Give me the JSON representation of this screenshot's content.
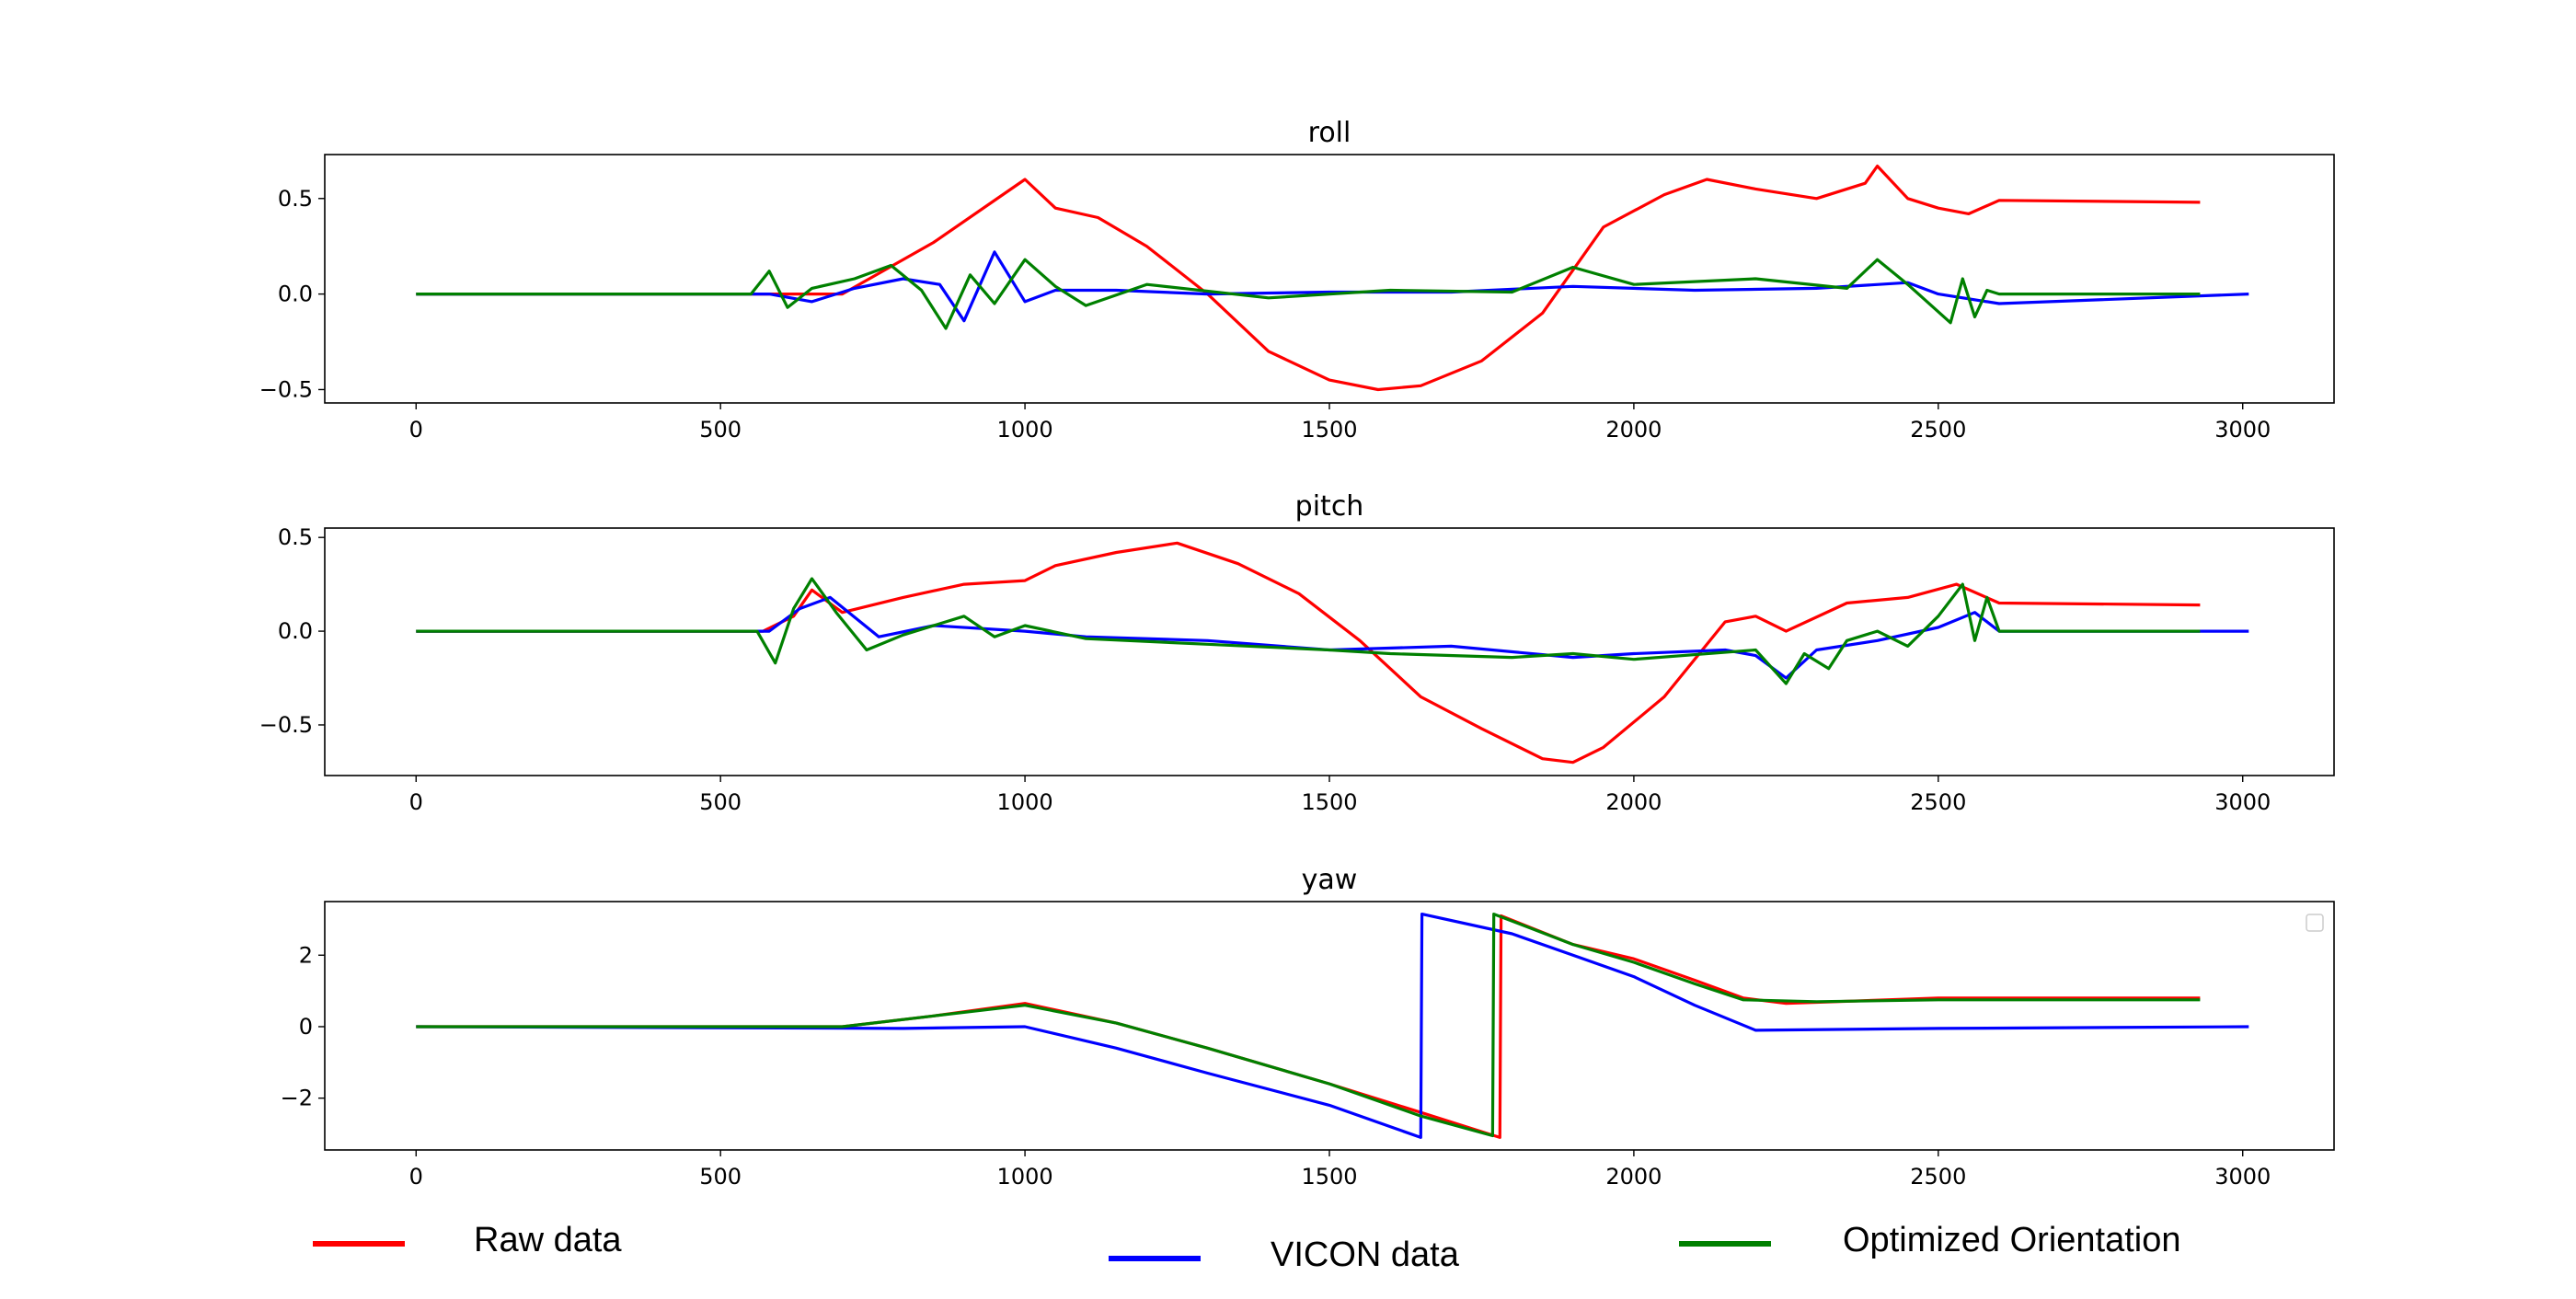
{
  "chart_data": [
    {
      "type": "line",
      "title": "roll",
      "xlabel": "",
      "ylabel": "",
      "xlim": [
        -150,
        3150
      ],
      "ylim": [
        -0.57,
        0.73
      ],
      "xticks": [
        0,
        500,
        1000,
        1500,
        2000,
        2500,
        3000
      ],
      "yticks": [
        -0.5,
        0.0,
        0.5
      ],
      "ytick_labels": [
        "−0.5",
        "0.0",
        "0.5"
      ],
      "grid": false,
      "series": [
        {
          "color": "#ff0000",
          "x": [
            0,
            700,
            850,
            1000,
            1050,
            1120,
            1200,
            1300,
            1400,
            1500,
            1580,
            1650,
            1750,
            1850,
            1950,
            2050,
            2120,
            2200,
            2300,
            2380,
            2400,
            2450,
            2500,
            2550,
            2600,
            2930
          ],
          "y": [
            0.0,
            0.0,
            0.27,
            0.6,
            0.45,
            0.4,
            0.25,
            0.0,
            -0.3,
            -0.45,
            -0.5,
            -0.48,
            -0.35,
            -0.1,
            0.35,
            0.52,
            0.6,
            0.55,
            0.5,
            0.58,
            0.67,
            0.5,
            0.45,
            0.42,
            0.49,
            0.48
          ]
        },
        {
          "color": "#0000ff",
          "x": [
            0,
            580,
            650,
            720,
            800,
            860,
            900,
            950,
            1000,
            1050,
            1150,
            1300,
            1500,
            1700,
            1900,
            2100,
            2300,
            2450,
            2500,
            2600,
            3010
          ],
          "y": [
            0.0,
            0.0,
            -0.04,
            0.03,
            0.08,
            0.05,
            -0.14,
            0.22,
            -0.04,
            0.02,
            0.02,
            0.0,
            0.01,
            0.01,
            0.04,
            0.02,
            0.03,
            0.06,
            0.0,
            -0.05,
            0.0
          ]
        },
        {
          "color": "#008000",
          "x": [
            0,
            550,
            580,
            610,
            650,
            720,
            780,
            830,
            870,
            910,
            950,
            1000,
            1050,
            1100,
            1200,
            1400,
            1600,
            1800,
            1900,
            2000,
            2200,
            2350,
            2400,
            2450,
            2520,
            2540,
            2560,
            2580,
            2600,
            2930
          ],
          "y": [
            0.0,
            0.0,
            0.12,
            -0.07,
            0.03,
            0.08,
            0.15,
            0.02,
            -0.18,
            0.1,
            -0.05,
            0.18,
            0.04,
            -0.06,
            0.05,
            -0.02,
            0.02,
            0.01,
            0.14,
            0.05,
            0.08,
            0.03,
            0.18,
            0.05,
            -0.15,
            0.08,
            -0.12,
            0.02,
            0.0,
            0.0
          ]
        }
      ]
    },
    {
      "type": "line",
      "title": "pitch",
      "xlabel": "",
      "ylabel": "",
      "xlim": [
        -150,
        3150
      ],
      "ylim": [
        -0.77,
        0.55
      ],
      "xticks": [
        0,
        500,
        1000,
        1500,
        2000,
        2500,
        3000
      ],
      "yticks": [
        -0.5,
        0.0,
        0.5
      ],
      "ytick_labels": [
        "−0.5",
        "0.0",
        "0.5"
      ],
      "grid": false,
      "series": [
        {
          "color": "#ff0000",
          "x": [
            0,
            570,
            620,
            650,
            700,
            800,
            900,
            1000,
            1050,
            1150,
            1250,
            1350,
            1450,
            1550,
            1650,
            1750,
            1850,
            1900,
            1950,
            2050,
            2150,
            2200,
            2250,
            2350,
            2450,
            2530,
            2600,
            2930
          ],
          "y": [
            0.0,
            0.0,
            0.08,
            0.22,
            0.1,
            0.18,
            0.25,
            0.27,
            0.35,
            0.42,
            0.47,
            0.36,
            0.2,
            -0.05,
            -0.35,
            -0.52,
            -0.68,
            -0.7,
            -0.62,
            -0.35,
            0.05,
            0.08,
            0.0,
            0.15,
            0.18,
            0.25,
            0.15,
            0.14
          ]
        },
        {
          "color": "#0000ff",
          "x": [
            0,
            580,
            630,
            680,
            760,
            850,
            1000,
            1100,
            1300,
            1500,
            1700,
            1900,
            2000,
            2150,
            2200,
            2250,
            2300,
            2400,
            2500,
            2560,
            2600,
            3010
          ],
          "y": [
            0.0,
            0.0,
            0.12,
            0.18,
            -0.03,
            0.03,
            0.0,
            -0.03,
            -0.05,
            -0.1,
            -0.08,
            -0.14,
            -0.12,
            -0.1,
            -0.13,
            -0.25,
            -0.1,
            -0.05,
            0.02,
            0.1,
            0.0,
            0.0
          ]
        },
        {
          "color": "#008000",
          "x": [
            0,
            560,
            590,
            620,
            650,
            690,
            740,
            800,
            900,
            950,
            1000,
            1100,
            1300,
            1500,
            1600,
            1800,
            1900,
            2000,
            2200,
            2250,
            2280,
            2320,
            2350,
            2400,
            2450,
            2500,
            2540,
            2560,
            2580,
            2600,
            2930
          ],
          "y": [
            0.0,
            0.0,
            -0.17,
            0.12,
            0.28,
            0.1,
            -0.1,
            -0.02,
            0.08,
            -0.03,
            0.03,
            -0.04,
            -0.07,
            -0.1,
            -0.12,
            -0.14,
            -0.12,
            -0.15,
            -0.1,
            -0.28,
            -0.12,
            -0.2,
            -0.05,
            0.0,
            -0.08,
            0.08,
            0.25,
            -0.05,
            0.18,
            0.0,
            0.0
          ]
        }
      ]
    },
    {
      "type": "line",
      "title": "yaw",
      "xlabel": "",
      "ylabel": "",
      "xlim": [
        -150,
        3150
      ],
      "ylim": [
        -3.45,
        3.5
      ],
      "xticks": [
        0,
        500,
        1000,
        1500,
        2000,
        2500,
        3000
      ],
      "yticks": [
        -2,
        0,
        2
      ],
      "ytick_labels": [
        "−2",
        "0",
        "2"
      ],
      "grid": false,
      "series": [
        {
          "color": "#ff0000",
          "x": [
            0,
            700,
            850,
            1000,
            1150,
            1300,
            1500,
            1650,
            1780,
            1782,
            1900,
            2000,
            2100,
            2180,
            2250,
            2500,
            2930
          ],
          "y": [
            0.0,
            0.0,
            0.3,
            0.65,
            0.1,
            -0.6,
            -1.6,
            -2.4,
            -3.1,
            3.1,
            2.3,
            1.9,
            1.3,
            0.8,
            0.65,
            0.8,
            0.8
          ]
        },
        {
          "color": "#0000ff",
          "x": [
            0,
            800,
            1000,
            1150,
            1300,
            1500,
            1650,
            1652,
            1800,
            1900,
            2000,
            2100,
            2200,
            2500,
            3010
          ],
          "y": [
            0.0,
            -0.05,
            0.0,
            -0.6,
            -1.3,
            -2.2,
            -3.1,
            3.15,
            2.6,
            2.0,
            1.4,
            0.6,
            -0.1,
            -0.05,
            0.0
          ]
        },
        {
          "color": "#008000",
          "x": [
            0,
            700,
            850,
            1000,
            1150,
            1300,
            1500,
            1650,
            1768,
            1770,
            1900,
            2000,
            2100,
            2180,
            2300,
            2500,
            2930
          ],
          "y": [
            0.0,
            0.0,
            0.3,
            0.6,
            0.1,
            -0.6,
            -1.6,
            -2.5,
            -3.05,
            3.15,
            2.3,
            1.8,
            1.2,
            0.75,
            0.7,
            0.75,
            0.75
          ]
        }
      ]
    }
  ],
  "legend": [
    {
      "label": "Raw data",
      "color": "#ff0000"
    },
    {
      "label": "VICON data",
      "color": "#0000ff"
    },
    {
      "label": "Optimized Orientation",
      "color": "#008000"
    }
  ]
}
